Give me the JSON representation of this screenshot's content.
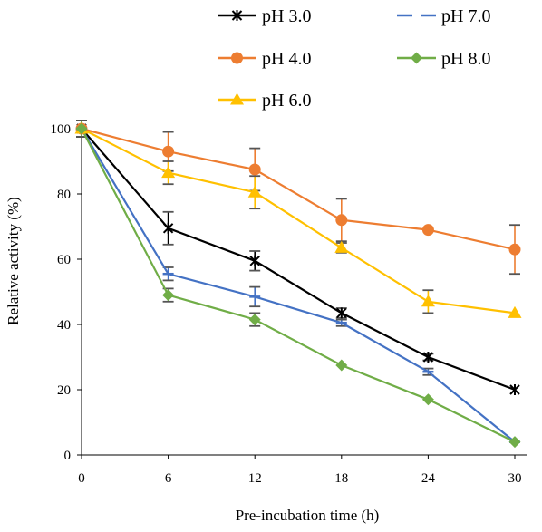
{
  "chart_data": {
    "type": "line",
    "xlabel": "Pre-incubation time (h)",
    "ylabel": "Relative activity (%)",
    "x": [
      0,
      6,
      12,
      18,
      24,
      30
    ],
    "xlim": [
      0,
      30
    ],
    "ylim": [
      0,
      100
    ],
    "x_ticks": [
      "0",
      "6",
      "12",
      "18",
      "24",
      "30"
    ],
    "y_ticks": [
      "0",
      "20",
      "40",
      "60",
      "80",
      "100"
    ],
    "grid": false,
    "legend_position": "top",
    "series": [
      {
        "name": "pH 3.0",
        "color": "#000000",
        "marker": "star",
        "values": [
          100,
          69.5,
          59.5,
          43.5,
          30,
          20
        ],
        "errors": [
          2.5,
          5,
          3,
          1.5,
          1,
          0.5
        ]
      },
      {
        "name": "pH 4.0",
        "color": "#ED7D31",
        "marker": "circle",
        "values": [
          100,
          93,
          87.5,
          72,
          69,
          63
        ],
        "errors": [
          2.5,
          6,
          6.5,
          6.5,
          0.5,
          7.5
        ]
      },
      {
        "name": "pH 6.0",
        "color": "#FFC000",
        "marker": "triangle",
        "values": [
          100,
          86.5,
          80.5,
          63.5,
          47,
          43.5
        ],
        "errors": [
          2.5,
          3.5,
          5,
          1.5,
          3.5,
          0.5
        ]
      },
      {
        "name": "pH 7.0",
        "color": "#4472C4",
        "marker": "dash",
        "values": [
          100,
          55.5,
          48.5,
          40.5,
          25.5,
          4
        ],
        "errors": [
          2.5,
          2,
          3,
          1,
          1,
          0.5
        ]
      },
      {
        "name": "pH 8.0",
        "color": "#70AD47",
        "marker": "diamond",
        "values": [
          100,
          49,
          41.5,
          27.5,
          17,
          4
        ],
        "errors": [
          2.5,
          2,
          2,
          0.5,
          0.5,
          0.5
        ]
      }
    ]
  }
}
